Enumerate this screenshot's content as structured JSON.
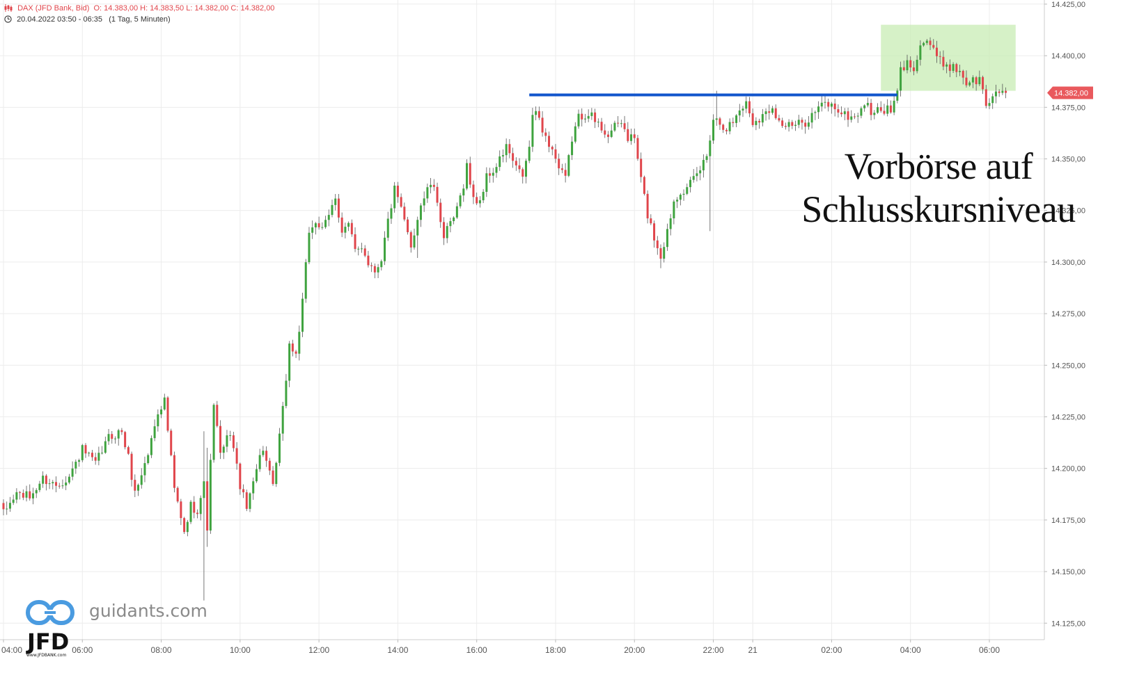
{
  "header": {
    "instrument": "DAX (JFD Bank, Bid)",
    "ohlc": "O: 14.383,00  H: 14.383,50  L: 14.382,00  C: 14.382,00",
    "range": "20.04.2022 03:50 - 06:35",
    "interval": "(1 Tag, 5 Minuten)"
  },
  "annotation": {
    "line1": "Vorbörse auf",
    "line2": "Schlusskursniveau"
  },
  "watermark": {
    "site": "guidants.com",
    "brand": "JFD",
    "brand_url": "www.JFDBANK.com"
  },
  "colors": {
    "up": "#3fa33f",
    "down": "#e0454b",
    "wick": "#555555",
    "grid": "#ececec",
    "resistance": "#1155cc",
    "zone": "#c8ecb4",
    "price_tag": "#e9595d",
    "logo": "#4a9be0"
  },
  "chart_data": {
    "type": "candlestick",
    "interval_minutes": 5,
    "ylim": [
      14117,
      14427
    ],
    "y_ticks": [
      14425,
      14400,
      14375,
      14350,
      14325,
      14300,
      14275,
      14250,
      14225,
      14200,
      14175,
      14150,
      14125
    ],
    "y_tick_labels": [
      "14.425,00",
      "14.400,00",
      "14.375,00",
      "14.350,00",
      "14.325,00",
      "14.300,00",
      "14.275,00",
      "14.250,00",
      "14.225,00",
      "14.200,00",
      "14.175,00",
      "14.150,00",
      "14.125,00"
    ],
    "x_ticks": [
      {
        "label": "04:00",
        "slot": 0
      },
      {
        "label": "06:00",
        "slot": 24
      },
      {
        "label": "08:00",
        "slot": 48
      },
      {
        "label": "10:00",
        "slot": 72
      },
      {
        "label": "12:00",
        "slot": 96
      },
      {
        "label": "14:00",
        "slot": 120
      },
      {
        "label": "16:00",
        "slot": 144
      },
      {
        "label": "18:00",
        "slot": 168
      },
      {
        "label": "20:00",
        "slot": 192
      },
      {
        "label": "22:00",
        "slot": 216
      },
      {
        "label": "21",
        "slot": 228
      },
      {
        "label": "02:00",
        "slot": 252
      },
      {
        "label": "04:00",
        "slot": 276
      },
      {
        "label": "06:00",
        "slot": 300
      }
    ],
    "last_price": 14382,
    "last_price_label": "14.382,00",
    "resistance_level": 14381,
    "resistance_from_slot": 160,
    "resistance_to_slot": 272,
    "highlight_zone": {
      "from_slot": 267,
      "to_slot": 308,
      "low": 14383,
      "high": 14415
    },
    "anchors": [
      [
        0,
        14178
      ],
      [
        4,
        14188
      ],
      [
        8,
        14186
      ],
      [
        12,
        14195
      ],
      [
        16,
        14192
      ],
      [
        20,
        14196
      ],
      [
        24,
        14209
      ],
      [
        28,
        14202
      ],
      [
        32,
        14215
      ],
      [
        36,
        14218
      ],
      [
        38,
        14205
      ],
      [
        40,
        14188
      ],
      [
        44,
        14207
      ],
      [
        47,
        14228
      ],
      [
        49,
        14233
      ],
      [
        52,
        14190
      ],
      [
        55,
        14168
      ],
      [
        57,
        14182
      ],
      [
        59,
        14180
      ],
      [
        61,
        14192
      ],
      [
        62,
        14172
      ],
      [
        64,
        14232
      ],
      [
        66,
        14206
      ],
      [
        69,
        14218
      ],
      [
        72,
        14192
      ],
      [
        74,
        14180
      ],
      [
        76,
        14196
      ],
      [
        79,
        14210
      ],
      [
        82,
        14190
      ],
      [
        85,
        14228
      ],
      [
        87,
        14260
      ],
      [
        89,
        14255
      ],
      [
        91,
        14280
      ],
      [
        93,
        14315
      ],
      [
        95,
        14320
      ],
      [
        97,
        14315
      ],
      [
        99,
        14322
      ],
      [
        101,
        14332
      ],
      [
        103,
        14315
      ],
      [
        105,
        14318
      ],
      [
        107,
        14305
      ],
      [
        109,
        14308
      ],
      [
        111,
        14300
      ],
      [
        113,
        14296
      ],
      [
        115,
        14302
      ],
      [
        117,
        14320
      ],
      [
        119,
        14335
      ],
      [
        121,
        14325
      ],
      [
        124,
        14308
      ],
      [
        127,
        14328
      ],
      [
        130,
        14338
      ],
      [
        132,
        14330
      ],
      [
        134,
        14312
      ],
      [
        136,
        14318
      ],
      [
        138,
        14325
      ],
      [
        140,
        14338
      ],
      [
        141,
        14347
      ],
      [
        143,
        14330
      ],
      [
        145,
        14330
      ],
      [
        147,
        14341
      ],
      [
        150,
        14346
      ],
      [
        153,
        14356
      ],
      [
        156,
        14345
      ],
      [
        158,
        14342
      ],
      [
        160,
        14355
      ],
      [
        161,
        14372
      ],
      [
        163,
        14370
      ],
      [
        165,
        14360
      ],
      [
        167,
        14355
      ],
      [
        169,
        14345
      ],
      [
        171,
        14340
      ],
      [
        173,
        14360
      ],
      [
        175,
        14370
      ],
      [
        178,
        14373
      ],
      [
        180,
        14368
      ],
      [
        182,
        14365
      ],
      [
        184,
        14362
      ],
      [
        186,
        14365
      ],
      [
        188,
        14368
      ],
      [
        190,
        14360
      ],
      [
        192,
        14360
      ],
      [
        194,
        14340
      ],
      [
        196,
        14323
      ],
      [
        198,
        14312
      ],
      [
        200,
        14303
      ],
      [
        202,
        14315
      ],
      [
        204,
        14330
      ],
      [
        206,
        14335
      ],
      [
        208,
        14335
      ],
      [
        210,
        14340
      ],
      [
        212,
        14345
      ],
      [
        214,
        14352
      ],
      [
        216,
        14370
      ],
      [
        218,
        14368
      ],
      [
        220,
        14365
      ],
      [
        222,
        14368
      ],
      [
        224,
        14374
      ],
      [
        226,
        14377
      ],
      [
        228,
        14368
      ],
      [
        230,
        14370
      ],
      [
        232,
        14372
      ],
      [
        234,
        14376
      ],
      [
        236,
        14368
      ],
      [
        238,
        14366
      ],
      [
        241,
        14366
      ],
      [
        244,
        14368
      ],
      [
        247,
        14373
      ],
      [
        250,
        14377
      ],
      [
        253,
        14375
      ],
      [
        256,
        14371
      ],
      [
        259,
        14370
      ],
      [
        262,
        14377
      ],
      [
        264,
        14373
      ],
      [
        266,
        14373
      ],
      [
        268,
        14374
      ],
      [
        270,
        14373
      ],
      [
        271,
        14377
      ],
      [
        272,
        14382
      ],
      [
        273,
        14393
      ],
      [
        275,
        14396
      ],
      [
        277,
        14395
      ],
      [
        279,
        14405
      ],
      [
        281,
        14408
      ],
      [
        283,
        14402
      ],
      [
        285,
        14397
      ],
      [
        287,
        14396
      ],
      [
        289,
        14394
      ],
      [
        291,
        14393
      ],
      [
        293,
        14387
      ],
      [
        295,
        14388
      ],
      [
        297,
        14388
      ],
      [
        298,
        14383
      ],
      [
        299,
        14377
      ],
      [
        300,
        14376
      ],
      [
        301,
        14381
      ],
      [
        302,
        14383
      ],
      [
        303,
        14384
      ],
      [
        304,
        14383
      ],
      [
        305,
        14382
      ]
    ],
    "outliers": [
      {
        "slot": 61,
        "high": 14218,
        "low": 14136
      },
      {
        "slot": 62,
        "high": 14210,
        "low": 14162
      },
      {
        "slot": 126,
        "low": 14302
      },
      {
        "slot": 200,
        "low": 14297
      },
      {
        "slot": 215,
        "low": 14315
      },
      {
        "slot": 217,
        "high": 14383
      }
    ]
  }
}
